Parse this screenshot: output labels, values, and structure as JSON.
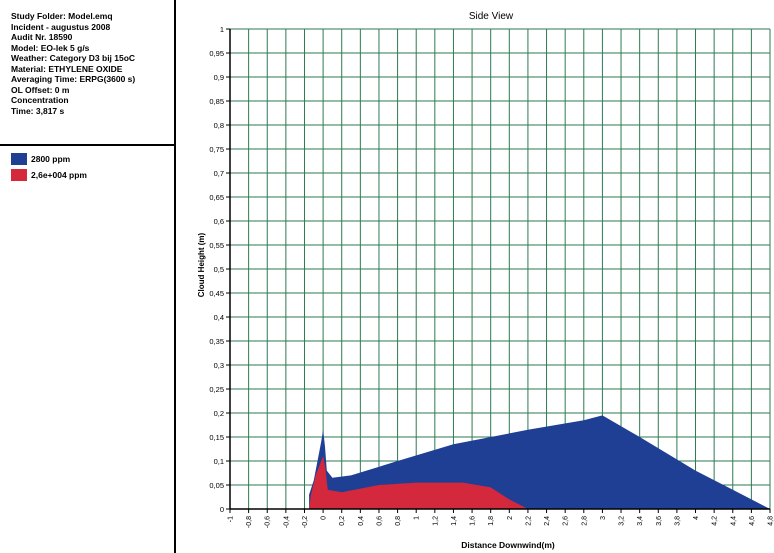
{
  "info": {
    "lines": [
      "Study Folder: Model.emq",
      "Incident - augustus 2008",
      "Audit Nr. 18590",
      "Model: EO-lek 5 g/s",
      "Weather: Category D3 bij 15oC",
      "Material: ETHYLENE OXIDE",
      "Averaging Time: ERPG(3600 s)",
      "OL Offset: 0 m",
      "Concentration",
      "Time: 3,817 s"
    ]
  },
  "colors": {
    "series1": "#1f3f94",
    "series2": "#d4283c",
    "grid": "#2d7a52",
    "plot_bg": "#ffffff"
  },
  "chart_data": {
    "type": "area",
    "title": "Side View",
    "xlabel": "Distance Downwind(m)",
    "ylabel": "Cloud Height (m)",
    "xlim": [
      -1,
      4.8
    ],
    "ylim": [
      0,
      1
    ],
    "grid": true,
    "x_ticks": [
      "-1",
      "-0,8",
      "-0,6",
      "-0,4",
      "-0,2",
      "0",
      "0,2",
      "0,4",
      "0,6",
      "0,8",
      "1",
      "1,2",
      "1,4",
      "1,6",
      "1,8",
      "2",
      "2,2",
      "2,4",
      "2,6",
      "2,8",
      "3",
      "3,2",
      "3,4",
      "3,6",
      "3,8",
      "4",
      "4,2",
      "4,4",
      "4,6",
      "4,8"
    ],
    "y_ticks": [
      "0",
      "0,05",
      "0,1",
      "0,15",
      "0,2",
      "0,25",
      "0,3",
      "0,35",
      "0,4",
      "0,45",
      "0,5",
      "0,55",
      "0,6",
      "0,65",
      "0,7",
      "0,75",
      "0,8",
      "0,85",
      "0,9",
      "0,95",
      "1"
    ],
    "series": [
      {
        "name": "2800 ppm",
        "points": [
          [
            -0.15,
            0
          ],
          [
            -0.15,
            0.03
          ],
          [
            -0.1,
            0.06
          ],
          [
            -0.02,
            0.14
          ],
          [
            0,
            0.165
          ],
          [
            0.02,
            0.13
          ],
          [
            0.04,
            0.08
          ],
          [
            0.1,
            0.065
          ],
          [
            0.3,
            0.07
          ],
          [
            0.8,
            0.1
          ],
          [
            1.4,
            0.135
          ],
          [
            2.2,
            0.165
          ],
          [
            2.8,
            0.185
          ],
          [
            3.0,
            0.195
          ],
          [
            3.4,
            0.15
          ],
          [
            4.0,
            0.08
          ],
          [
            4.4,
            0.04
          ],
          [
            4.8,
            0
          ]
        ]
      },
      {
        "name": "2,6e+004 ppm",
        "points": [
          [
            -0.15,
            0
          ],
          [
            -0.13,
            0.03
          ],
          [
            -0.08,
            0.07
          ],
          [
            -0.02,
            0.1
          ],
          [
            0,
            0.11
          ],
          [
            0.02,
            0.09
          ],
          [
            0.05,
            0.04
          ],
          [
            0.2,
            0.035
          ],
          [
            0.6,
            0.05
          ],
          [
            1.0,
            0.055
          ],
          [
            1.5,
            0.055
          ],
          [
            1.8,
            0.045
          ],
          [
            2.0,
            0.02
          ],
          [
            2.2,
            0
          ]
        ]
      }
    ]
  }
}
